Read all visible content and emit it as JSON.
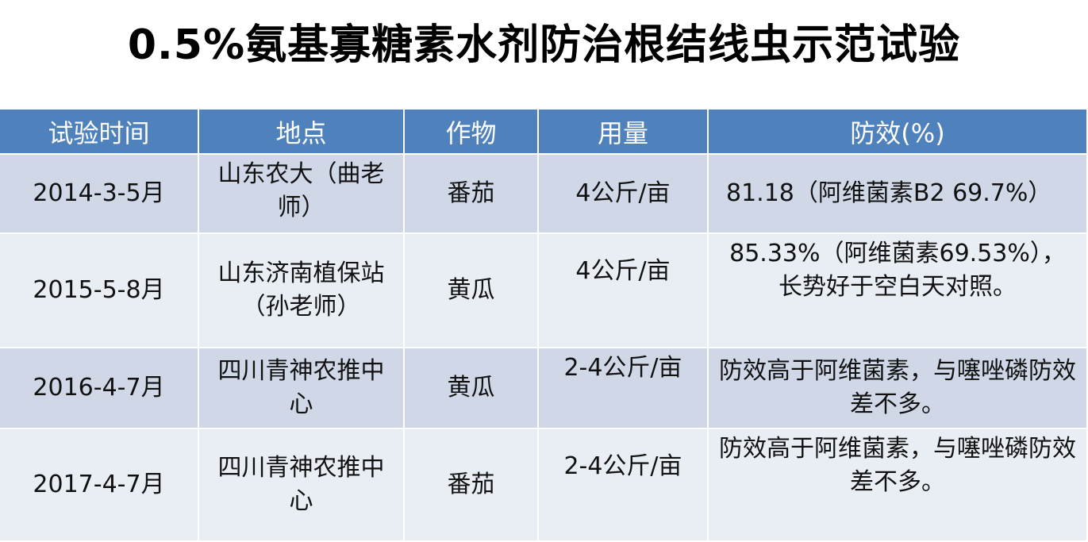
{
  "title": "0.5%氨基寡糖素水剂防治根结线虫示范试验",
  "table": {
    "headers": [
      "试验时间",
      "地点",
      "作物",
      "用量",
      "防效(%)"
    ],
    "rows": [
      {
        "time": "2014-3-5月",
        "location": "山东农大（曲老师）",
        "crop": "番茄",
        "dosage": "4公斤/亩",
        "efficacy": "81.18（阿维菌素B2 69.7%）"
      },
      {
        "time": "2015-5-8月",
        "location": "山东济南植保站（孙老师）",
        "crop": "黄瓜",
        "dosage": "4公斤/亩",
        "efficacy": "85.33%（阿维菌素69.53%），长势好于空白天对照。"
      },
      {
        "time": "2016-4-7月",
        "location": "四川青神农推中心",
        "crop": "黄瓜",
        "dosage": "2-4公斤/亩",
        "efficacy": "防效高于阿维菌素，与噻唑磷防效差不多。"
      },
      {
        "time": "2017-4-7月",
        "location": "四川青神农推中心",
        "crop": "番茄",
        "dosage": "2-4公斤/亩",
        "efficacy": "防效高于阿维菌素，与噻唑磷防效差不多。"
      }
    ]
  },
  "colors": {
    "header_bg": "#4F81BD",
    "row_odd": "#D0D8E8",
    "row_even": "#E9EDF4"
  }
}
